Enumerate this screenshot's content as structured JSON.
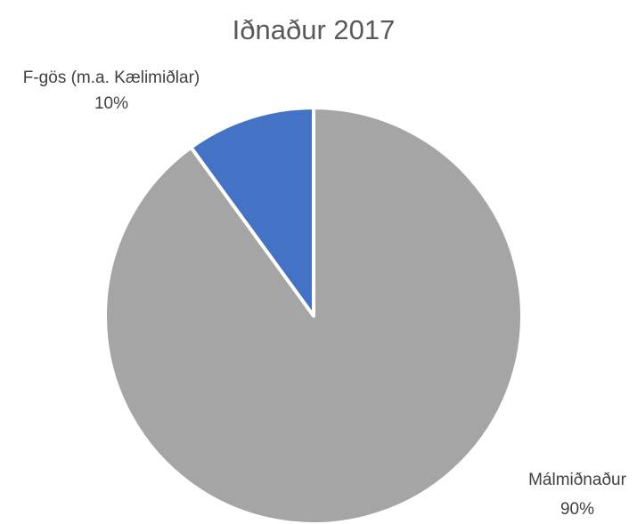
{
  "chart_data": {
    "type": "pie",
    "title": "Iðnaður 2017",
    "categories": [
      "Málmiðnaður",
      "F-gös (m.a. Kælimiðlar)"
    ],
    "values": [
      90,
      10
    ],
    "value_labels": [
      "90%",
      "10%"
    ],
    "colors": [
      "#a5a5a5",
      "#4472c4"
    ]
  }
}
